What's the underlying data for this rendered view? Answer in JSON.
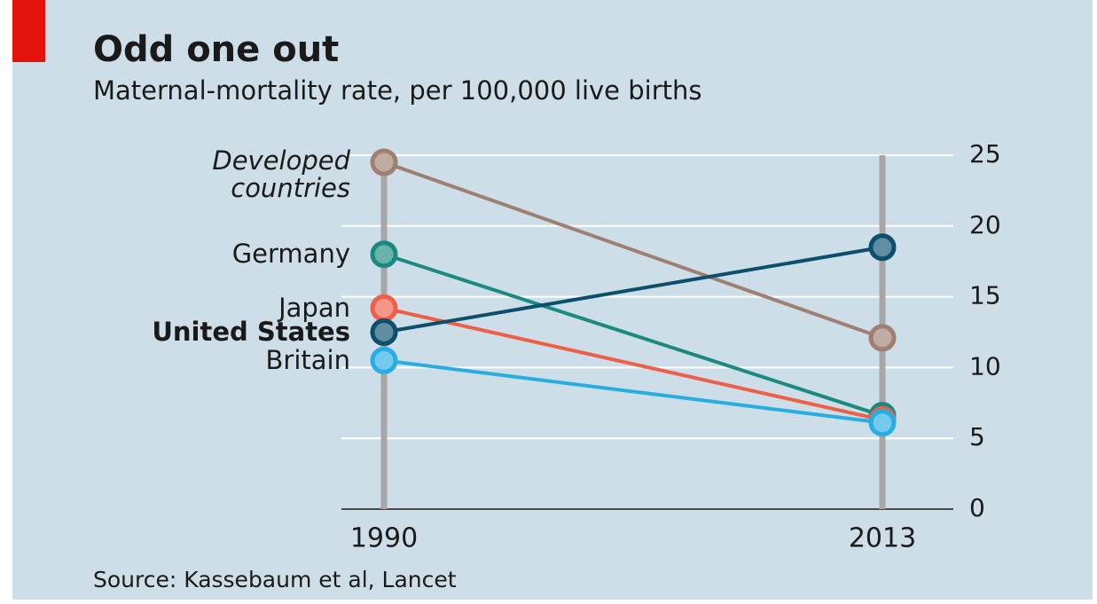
{
  "chart_data": {
    "type": "slope",
    "title": "Odd one out",
    "subtitle": "Maternal-mortality rate, per 100,000 live births",
    "source": "Source: Kassebaum et al, Lancet",
    "categories": [
      "1990",
      "2013"
    ],
    "series": [
      {
        "name": "Developed countries",
        "color": "#9e7f72",
        "italic": true,
        "values": [
          24.5,
          12.1
        ]
      },
      {
        "name": "Germany",
        "color": "#1a8a80",
        "values": [
          18.0,
          6.6
        ]
      },
      {
        "name": "Japan",
        "color": "#ee5f48",
        "values": [
          14.2,
          6.3
        ]
      },
      {
        "name": "United States",
        "color": "#0b4f6c",
        "bold": true,
        "values": [
          12.5,
          18.5
        ]
      },
      {
        "name": "Britain",
        "color": "#27ade4",
        "values": [
          10.5,
          6.1
        ]
      }
    ],
    "ylim": [
      0,
      25
    ],
    "yticks": [
      0,
      5,
      10,
      15,
      20,
      25
    ],
    "grid": true
  }
}
